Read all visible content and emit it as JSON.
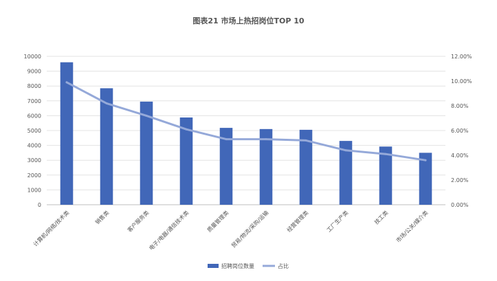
{
  "chart_data": {
    "type": "bar",
    "title": "图表21 市场上热招岗位TOP 10",
    "categories": [
      "计算机/网络/技术类",
      "销售类",
      "客户服务类",
      "电子/电器/通信技术类",
      "质量管理类",
      "贸易/物流/采购/运输",
      "经营管理类",
      "工厂生产类",
      "技工类",
      "市场/公关/媒介类"
    ],
    "series": [
      {
        "name": "招聘岗位数量",
        "type": "bar",
        "axis": "left",
        "color": "#4167b8",
        "values": [
          9600,
          7850,
          6950,
          5880,
          5180,
          5100,
          5050,
          4300,
          3920,
          3500
        ]
      },
      {
        "name": "占比",
        "type": "line",
        "axis": "right",
        "color": "#95a9d9",
        "values": [
          9.9,
          8.2,
          7.2,
          6.1,
          5.3,
          5.3,
          5.2,
          4.4,
          4.1,
          3.6
        ]
      }
    ],
    "yaxis_left": {
      "min": 0,
      "max": 10000,
      "step": 1000,
      "ticks": [
        "0",
        "1000",
        "2000",
        "3000",
        "4000",
        "5000",
        "6000",
        "7000",
        "8000",
        "9000",
        "10000"
      ]
    },
    "yaxis_right": {
      "min": 0,
      "max": 12,
      "step": 2,
      "ticks": [
        "0.00%",
        "2.00%",
        "4.00%",
        "6.00%",
        "8.00%",
        "10.00%",
        "12.00%"
      ]
    },
    "grid": true,
    "legend": {
      "position": "bottom",
      "items": [
        "招聘岗位数量",
        "占比"
      ]
    }
  }
}
